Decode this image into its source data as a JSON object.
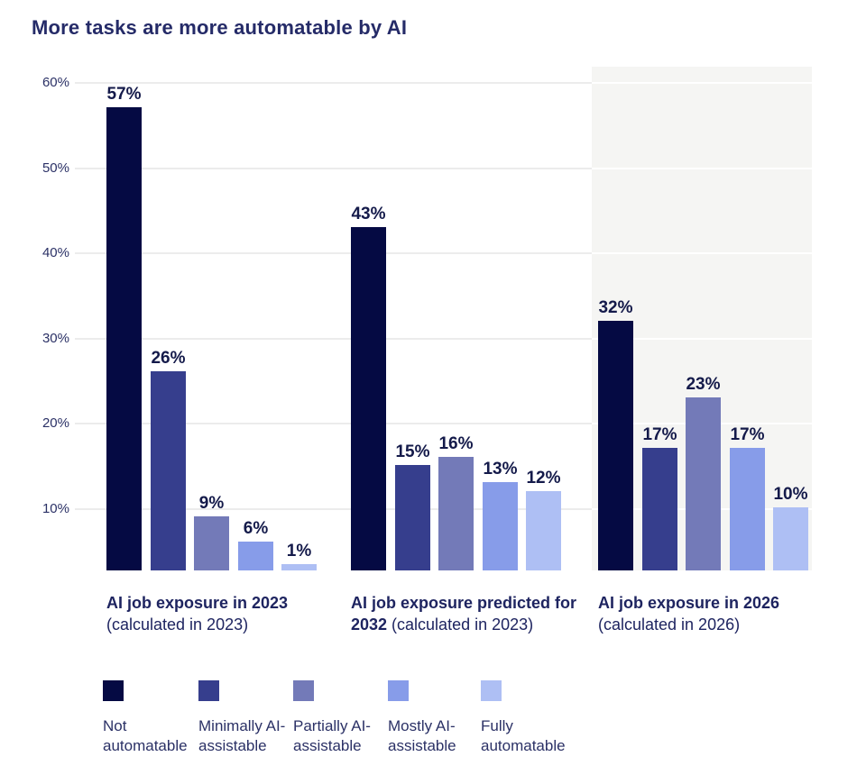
{
  "title": "More tasks are more automatable by AI",
  "chart_data": {
    "type": "bar",
    "title": "More tasks are more automatable by AI",
    "value_suffix": "%",
    "yticks": [
      "10%",
      "20%",
      "30%",
      "40%",
      "50%",
      "60%"
    ],
    "ytick_values": [
      10,
      20,
      30,
      40,
      50,
      60
    ],
    "ylim": [
      0,
      62
    ],
    "grid": true,
    "legend_position": "bottom",
    "categories": [
      {
        "bold": "AI job exposure in 2023",
        "regular": "(calculated in 2023)",
        "highlighted": false
      },
      {
        "bold": "AI job exposure predicted for 2032",
        "regular": "(calculated in 2023)",
        "highlighted": false
      },
      {
        "bold": "AI job exposure in 2026",
        "regular": "(calculated in 2026)",
        "highlighted": true
      }
    ],
    "series": [
      {
        "name": "Not automatable",
        "color": "#050a43",
        "values": [
          57,
          43,
          32
        ]
      },
      {
        "name": "Minimally AI-assistable",
        "color": "#363e8d",
        "values": [
          26,
          15,
          17
        ]
      },
      {
        "name": "Partially AI-assistable",
        "color": "#737ab8",
        "values": [
          9,
          16,
          23
        ]
      },
      {
        "name": "Mostly AI-assistable",
        "color": "#879ce9",
        "values": [
          6,
          13,
          17
        ]
      },
      {
        "name": "Fully automatable",
        "color": "#aebff4",
        "values": [
          1,
          12,
          10
        ]
      }
    ],
    "highlight_panel_color": "#f5f5f3"
  }
}
